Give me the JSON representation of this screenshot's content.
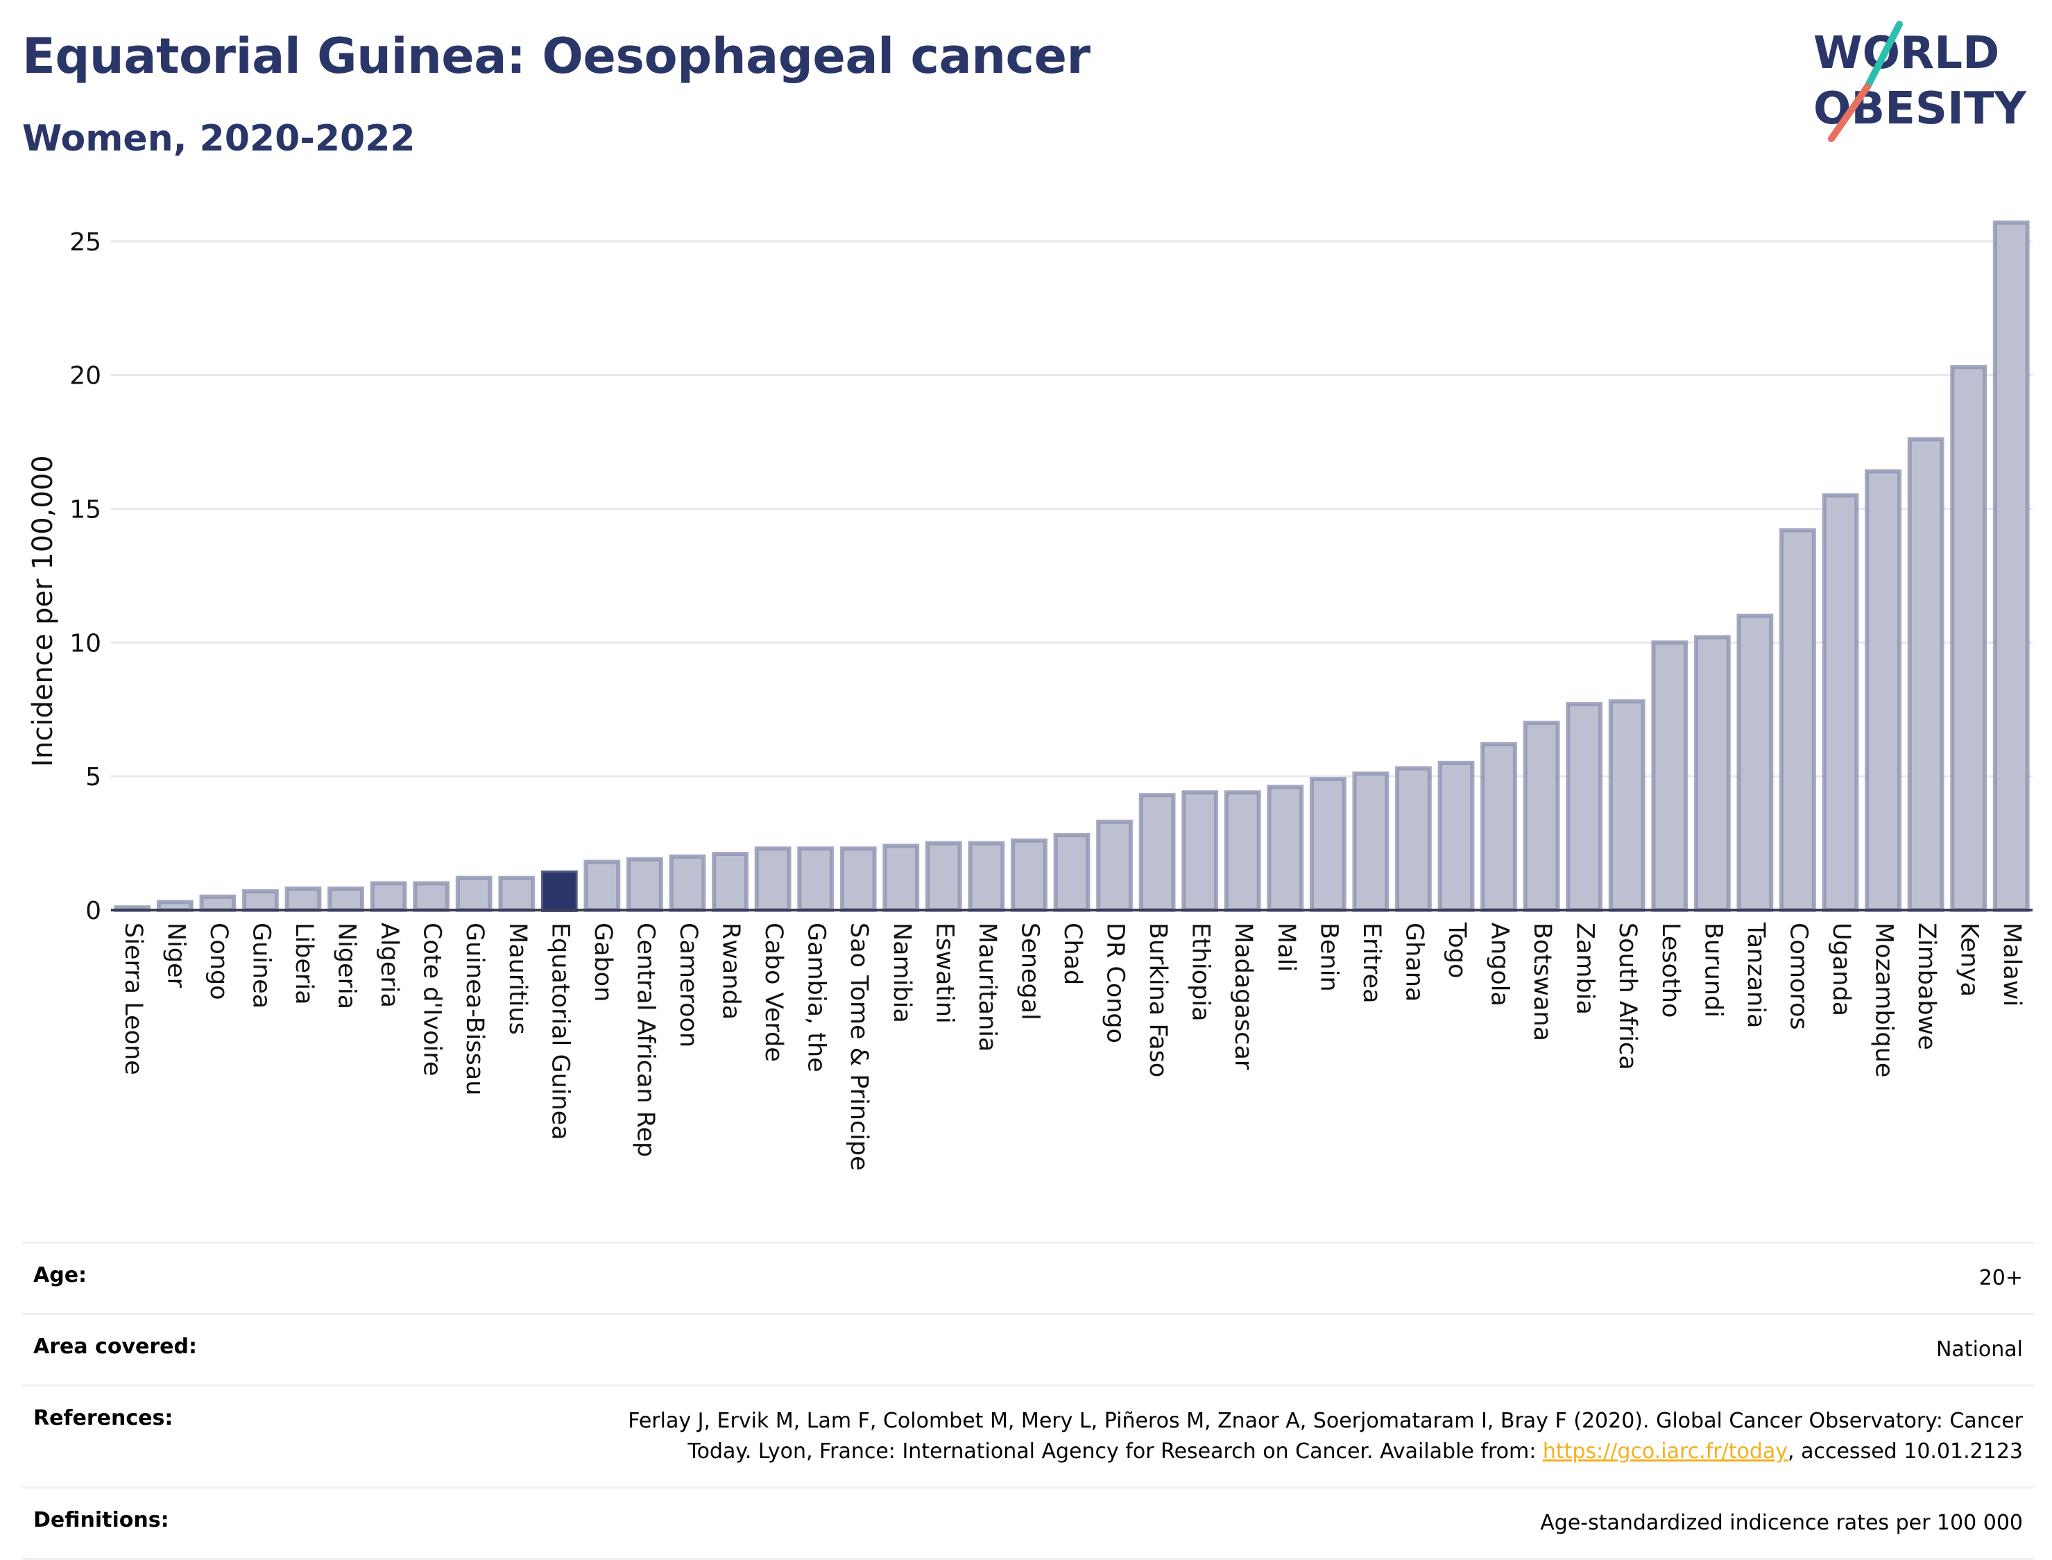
{
  "header": {
    "title": "Equatorial Guinea: Oesophageal cancer",
    "subtitle": "Women, 2020-2022"
  },
  "logo": {
    "line1": "WORLD",
    "line2": "OBESITY",
    "colors": {
      "text": "#2b3668",
      "slash_top": "#2bbfb0",
      "slash_bottom": "#e8705e"
    }
  },
  "colors": {
    "bar_fill": "#bcc0d0",
    "bar_stroke": "#8d94b2",
    "highlight": "#2b3668",
    "grid": "#e6e8ee",
    "axis": "#3a3f55"
  },
  "chart_data": {
    "type": "bar",
    "ylabel": "Incidence per 100,000",
    "xlabel": "",
    "ylim": [
      0,
      26.5
    ],
    "yticks": [
      0,
      5,
      10,
      15,
      20,
      25
    ],
    "grid": true,
    "highlight": "Equatorial Guinea",
    "categories": [
      "Sierra Leone",
      "Niger",
      "Congo",
      "Guinea",
      "Liberia",
      "Nigeria",
      "Algeria",
      "Cote d'Ivoire",
      "Guinea-Bissau",
      "Mauritius",
      "Equatorial Guinea",
      "Gabon",
      "Central African Rep",
      "Cameroon",
      "Rwanda",
      "Cabo Verde",
      "Gambia, the",
      "Sao Tome & Principe",
      "Namibia",
      "Eswatini",
      "Mauritania",
      "Senegal",
      "Chad",
      "DR Congo",
      "Burkina Faso",
      "Ethiopia",
      "Madagascar",
      "Mali",
      "Benin",
      "Eritrea",
      "Ghana",
      "Togo",
      "Angola",
      "Botswana",
      "Zambia",
      "South Africa",
      "Lesotho",
      "Burundi",
      "Tanzania",
      "Comoros",
      "Uganda",
      "Mozambique",
      "Zimbabwe",
      "Kenya",
      "Malawi"
    ],
    "values": [
      0.1,
      0.3,
      0.5,
      0.7,
      0.8,
      0.8,
      1.0,
      1.0,
      1.2,
      1.2,
      1.4,
      1.8,
      1.9,
      2.0,
      2.1,
      2.3,
      2.3,
      2.3,
      2.4,
      2.5,
      2.5,
      2.6,
      2.8,
      3.3,
      4.3,
      4.4,
      4.4,
      4.6,
      4.9,
      5.1,
      5.3,
      5.5,
      6.2,
      7.0,
      7.7,
      7.8,
      10.0,
      10.2,
      11.0,
      14.2,
      15.5,
      16.4,
      17.6,
      20.3,
      25.7
    ]
  },
  "info": {
    "age_label": "Age:",
    "age_value": "20+",
    "area_label": "Area covered:",
    "area_value": "National",
    "references_label": "References:",
    "references_text_1": "Ferlay J, Ervik M, Lam F, Colombet M, Mery L, Piñeros M, Znaor A, Soerjomataram I, Bray F (2020). Global Cancer Observatory: Cancer",
    "references_text_2": "Today. Lyon, France: International Agency for Research on Cancer. Available from: ",
    "references_link": "https://gco.iarc.fr/today",
    "references_text_3": ", accessed 10.01.2123",
    "definitions_label": "Definitions:",
    "definitions_value": "Age-standardized indicence rates per 100 000"
  }
}
